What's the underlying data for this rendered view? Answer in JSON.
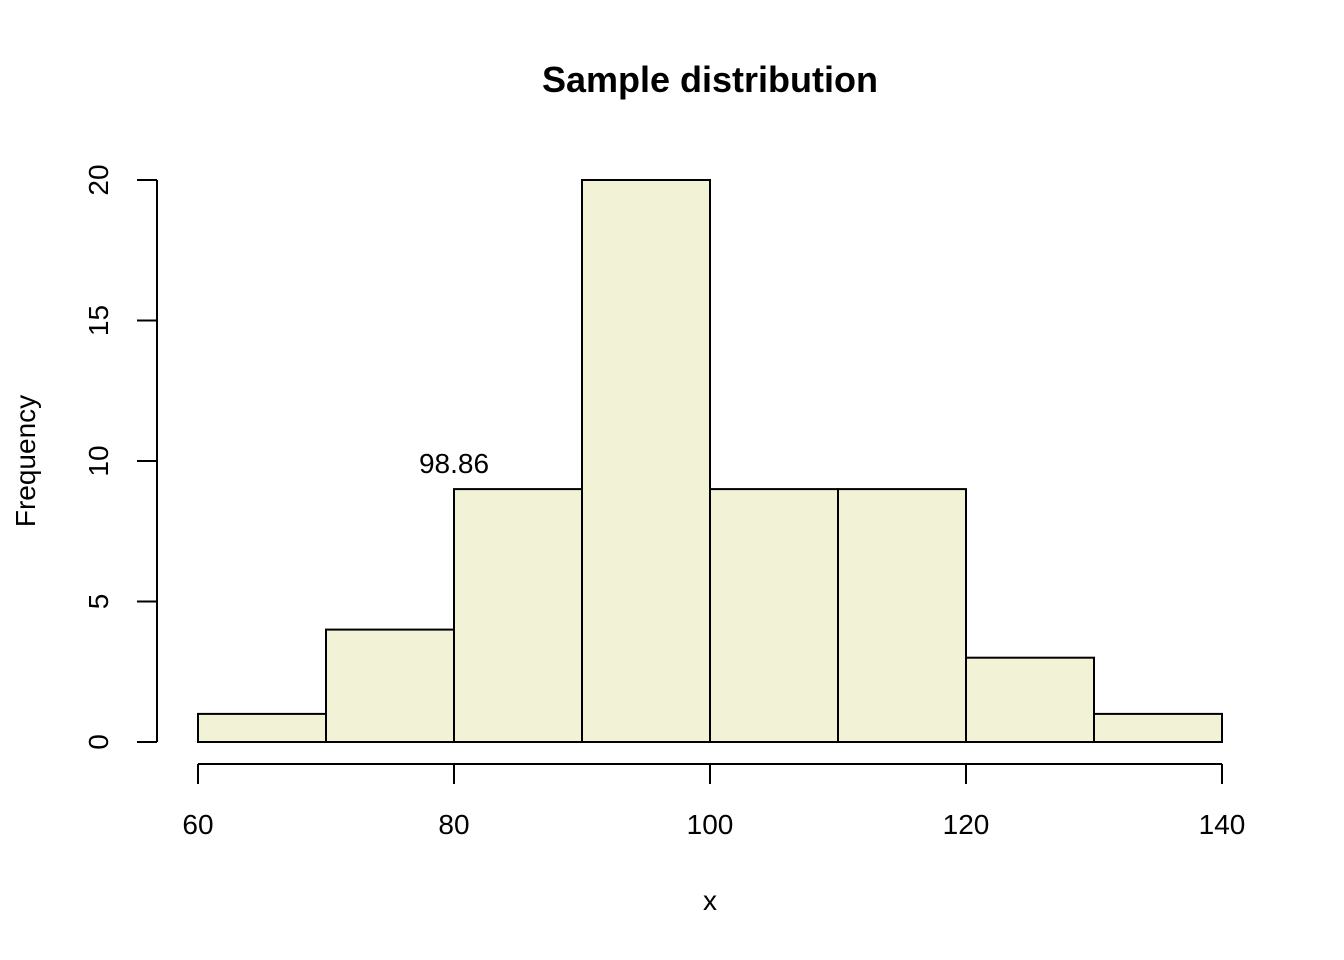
{
  "chart_data": {
    "type": "bar",
    "title": "Sample distribution",
    "xlabel": "x",
    "ylabel": "Frequency",
    "bin_edges": [
      60,
      70,
      80,
      90,
      100,
      110,
      120,
      130,
      140
    ],
    "values": [
      1,
      4,
      9,
      20,
      9,
      9,
      3,
      1
    ],
    "xlim": [
      60,
      140
    ],
    "ylim": [
      0,
      20
    ],
    "x_ticks": [
      60,
      80,
      100,
      120,
      140
    ],
    "y_ticks": [
      0,
      5,
      10,
      15,
      20
    ],
    "bar_color": "#f2f2d6",
    "grid": false,
    "annotation": {
      "text": "98.86",
      "x": 80,
      "y": 10
    }
  }
}
